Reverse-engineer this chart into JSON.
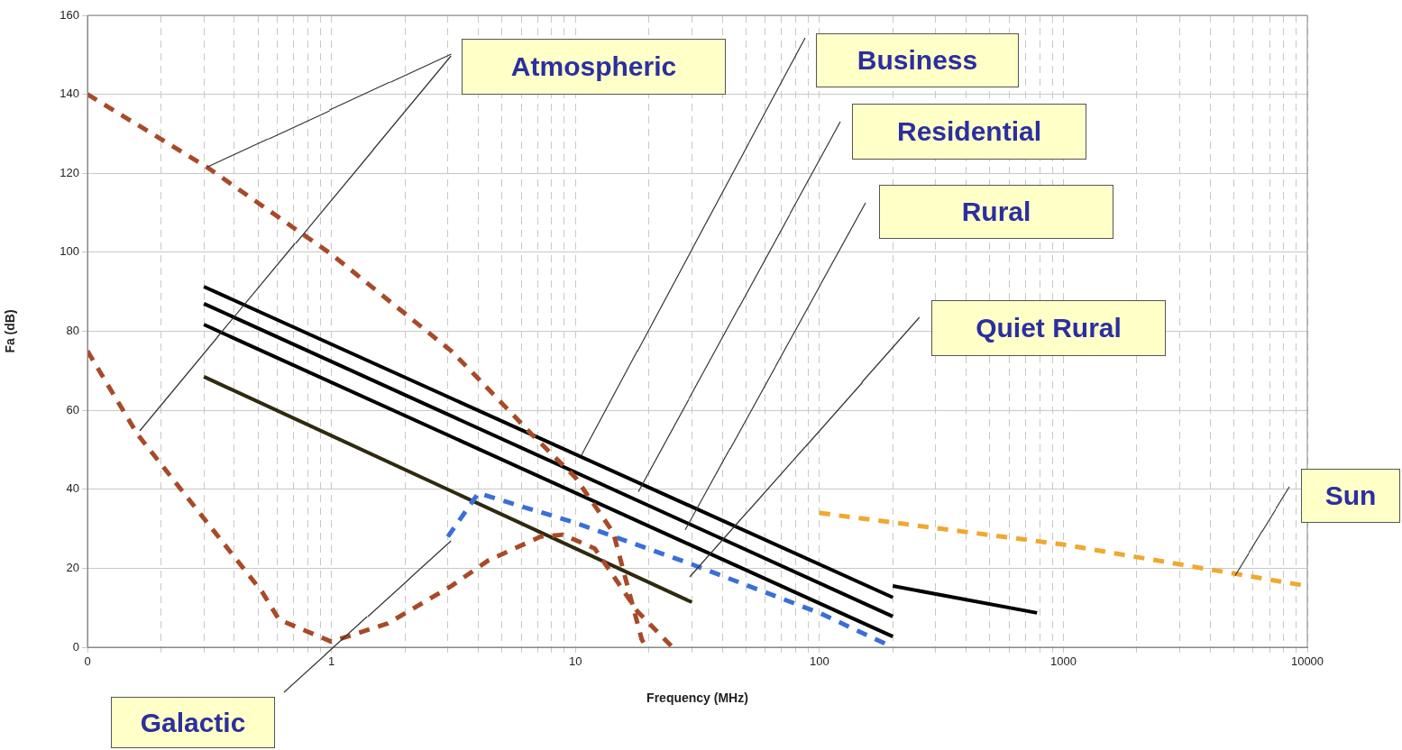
{
  "chart_data": {
    "type": "line",
    "xlabel": "Frequency (MHz)",
    "ylabel": "Fa (dB)",
    "log": "x",
    "grid": true,
    "legend": false,
    "xlim": [
      0.1,
      10000
    ],
    "ylim": [
      0,
      160
    ],
    "xticks": [
      {
        "value": 0.1,
        "label": "0"
      },
      {
        "value": 0.2,
        "label": null
      },
      {
        "value": 0.3,
        "label": null
      },
      {
        "value": 0.4,
        "label": null
      },
      {
        "value": 0.5,
        "label": null
      },
      {
        "value": 0.6,
        "label": null
      },
      {
        "value": 0.7,
        "label": null
      },
      {
        "value": 0.8,
        "label": null
      },
      {
        "value": 0.9,
        "label": null
      },
      1,
      {
        "value": 2,
        "label": null
      },
      {
        "value": 3,
        "label": null
      },
      {
        "value": 4,
        "label": null
      },
      {
        "value": 5,
        "label": null
      },
      {
        "value": 6,
        "label": null
      },
      {
        "value": 7,
        "label": null
      },
      {
        "value": 8,
        "label": null
      },
      {
        "value": 9,
        "label": null
      },
      10,
      {
        "value": 20,
        "label": null
      },
      {
        "value": 30,
        "label": null
      },
      {
        "value": 40,
        "label": null
      },
      {
        "value": 50,
        "label": null
      },
      {
        "value": 60,
        "label": null
      },
      {
        "value": 70,
        "label": null
      },
      {
        "value": 80,
        "label": null
      },
      {
        "value": 90,
        "label": null
      },
      100,
      {
        "value": 200,
        "label": null
      },
      {
        "value": 300,
        "label": null
      },
      {
        "value": 400,
        "label": null
      },
      {
        "value": 500,
        "label": null
      },
      {
        "value": 600,
        "label": null
      },
      {
        "value": 700,
        "label": null
      },
      {
        "value": 800,
        "label": null
      },
      {
        "value": 900,
        "label": null
      },
      1000,
      {
        "value": 2000,
        "label": null
      },
      {
        "value": 3000,
        "label": null
      },
      {
        "value": 4000,
        "label": null
      },
      {
        "value": 5000,
        "label": null
      },
      {
        "value": 6000,
        "label": null
      },
      {
        "value": 7000,
        "label": null
      },
      {
        "value": 8000,
        "label": null
      },
      {
        "value": 9000,
        "label": null
      },
      10000
    ],
    "yticks": [
      0,
      20,
      40,
      60,
      80,
      100,
      120,
      140,
      160
    ],
    "series": [
      {
        "color": "#a84a28",
        "line_style": "dashed",
        "x": [
          0.1,
          0.31,
          1,
          3.1,
          4,
          6.6,
          10,
          14.3,
          18.7,
          19.5
        ],
        "values": [
          140,
          121.5,
          99.5,
          75,
          68,
          54,
          43,
          29,
          2,
          0
        ]
      },
      {
        "color": "#a84a28",
        "line_style": "dashed",
        "x": [
          0.1,
          0.16,
          0.31,
          0.52,
          0.61,
          1,
          1.7,
          3.1,
          4.4,
          7.2,
          8.9,
          12,
          18,
          25
        ],
        "values": [
          75,
          54,
          31.5,
          14,
          7,
          1.4,
          6,
          15.5,
          22,
          28,
          28.5,
          25,
          9,
          0
        ]
      },
      {
        "color": "#3a6fd8",
        "line_style": "dashed",
        "x": [
          3,
          4,
          10,
          30,
          100,
          200
        ],
        "values": [
          28,
          39,
          31.5,
          21,
          8.7,
          0
        ]
      },
      {
        "color": "#f0a830",
        "line_style": "dashed",
        "x": [
          100,
          1000,
          10000
        ],
        "values": [
          34,
          26,
          15.5
        ]
      },
      {
        "color": "#000000",
        "line_style": "solid",
        "x": [
          0.3,
          200
        ],
        "values": [
          91.3,
          12.6
        ]
      },
      {
        "color": "#000000",
        "line_style": "solid",
        "x": [
          0.3,
          200
        ],
        "values": [
          87,
          7.8
        ]
      },
      {
        "color": "#000000",
        "line_style": "solid",
        "x": [
          0.3,
          200
        ],
        "values": [
          81.7,
          2.7
        ]
      },
      {
        "color": "#2e2a10",
        "line_style": "solid",
        "x": [
          0.3,
          30
        ],
        "values": [
          68.5,
          11.4
        ]
      },
      {
        "color": "#000000",
        "line_style": "solid",
        "x": [
          200,
          780
        ],
        "values": [
          15.5,
          8.7
        ]
      }
    ],
    "annotations": [
      "Atmospheric",
      "Business",
      "Residential",
      "Rural",
      "Quiet Rural",
      "Galactic",
      "Sun"
    ]
  }
}
